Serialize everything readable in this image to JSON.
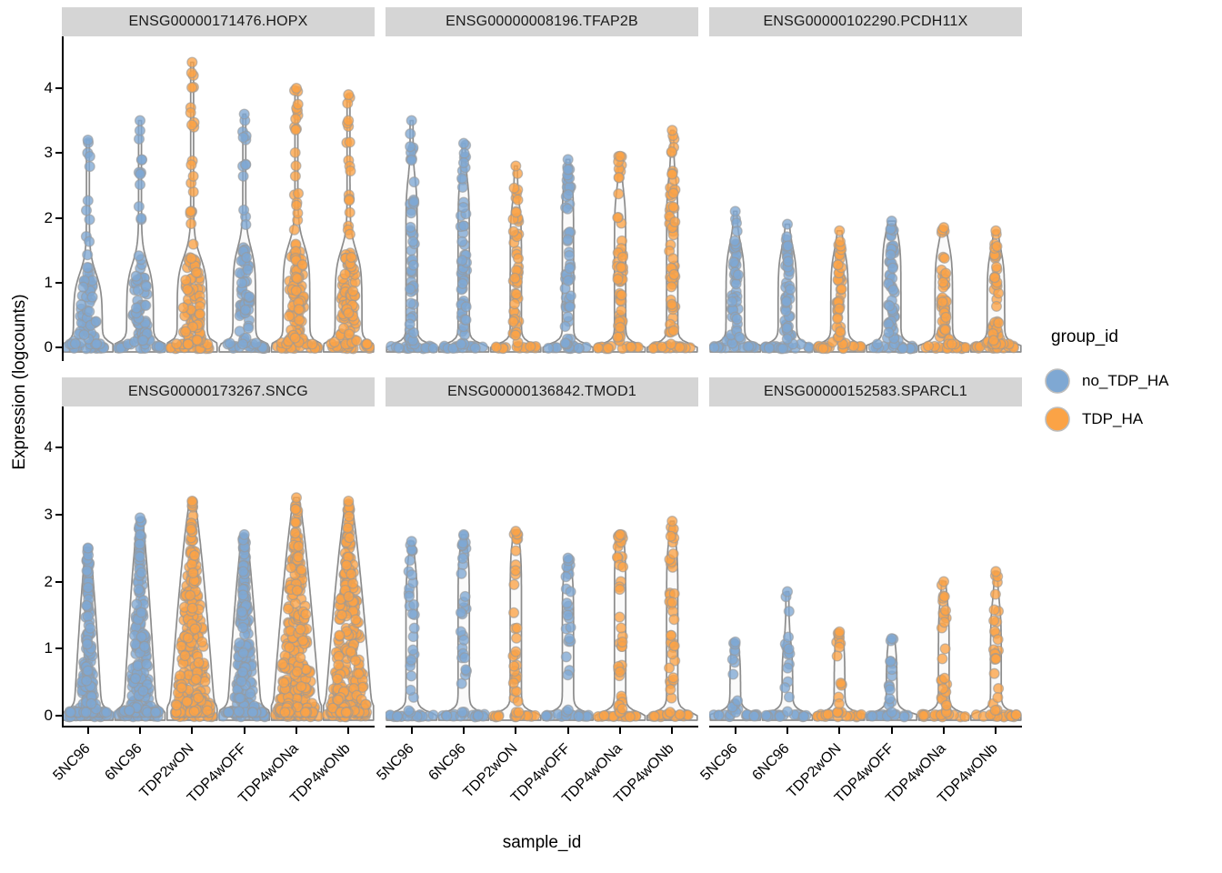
{
  "chart_data": {
    "type": "violin",
    "title": "",
    "xlabel": "sample_id",
    "ylabel": "Expression (logcounts)",
    "y_ticks": [
      0,
      1,
      2,
      3,
      4
    ],
    "ylim": [
      -0.2,
      4.8
    ],
    "grid": false,
    "facet_grid": {
      "rows": 2,
      "cols": 3
    },
    "samples": [
      "5NC96",
      "6NC96",
      "TDP2wON",
      "TDP4wOFF",
      "TDP4wONa",
      "TDP4wONb"
    ],
    "sample_groups": [
      "no_TDP_HA",
      "no_TDP_HA",
      "TDP_HA",
      "no_TDP_HA",
      "TDP_HA",
      "TDP_HA"
    ],
    "legend": {
      "title": "group_id",
      "position": "right",
      "entries": [
        {
          "label": "no_TDP_HA",
          "color": "#7FA8D3"
        },
        {
          "label": "TDP_HA",
          "color": "#FBA346"
        }
      ]
    },
    "style": {
      "strip_bg": "#D5D5D5",
      "violin_stroke": "#8C8C8C",
      "violin_fill": "#F7F7F7",
      "point_stroke": "#9A9A9A",
      "legend_ring": "#BDBDBD",
      "axis_color": "#000000"
    },
    "facets": [
      {
        "title": "ENSG00000171476.HOPX",
        "row": 0,
        "col": 0,
        "shape": "bulge",
        "violins": [
          {
            "sample": "5NC96",
            "group": "no_TDP_HA",
            "max": 3.2,
            "dense_to": 1.15,
            "width": 0.5,
            "n": 55,
            "ns": 12
          },
          {
            "sample": "6NC96",
            "group": "no_TDP_HA",
            "max": 3.5,
            "dense_to": 1.3,
            "width": 0.46,
            "n": 60,
            "ns": 13
          },
          {
            "sample": "TDP2wON",
            "group": "TDP_HA",
            "max": 4.4,
            "dense_to": 1.4,
            "width": 0.52,
            "n": 90,
            "ns": 20
          },
          {
            "sample": "TDP4wOFF",
            "group": "no_TDP_HA",
            "max": 3.6,
            "dense_to": 1.55,
            "width": 0.38,
            "n": 60,
            "ns": 12
          },
          {
            "sample": "TDP4wONa",
            "group": "TDP_HA",
            "max": 4.0,
            "dense_to": 1.6,
            "width": 0.46,
            "n": 80,
            "ns": 20
          },
          {
            "sample": "TDP4wONb",
            "group": "TDP_HA",
            "max": 3.9,
            "dense_to": 1.5,
            "width": 0.46,
            "n": 80,
            "ns": 18
          }
        ]
      },
      {
        "title": "ENSG00000008196.TFAP2B",
        "row": 0,
        "col": 1,
        "shape": "stem",
        "violins": [
          {
            "sample": "5NC96",
            "group": "no_TDP_HA",
            "max": 3.5,
            "dense_to": 2.6,
            "width": 0.16,
            "n": 46,
            "ns": 8
          },
          {
            "sample": "6NC96",
            "group": "no_TDP_HA",
            "max": 3.15,
            "dense_to": 2.6,
            "width": 0.16,
            "n": 44,
            "ns": 8
          },
          {
            "sample": "TDP2wON",
            "group": "TDP_HA",
            "max": 2.8,
            "dense_to": 2.2,
            "width": 0.16,
            "n": 40,
            "ns": 6
          },
          {
            "sample": "TDP4wOFF",
            "group": "no_TDP_HA",
            "max": 2.9,
            "dense_to": 2.6,
            "width": 0.16,
            "n": 46,
            "ns": 6
          },
          {
            "sample": "TDP4wONa",
            "group": "TDP_HA",
            "max": 2.95,
            "dense_to": 2.4,
            "width": 0.16,
            "n": 44,
            "ns": 8
          },
          {
            "sample": "TDP4wONb",
            "group": "TDP_HA",
            "max": 3.35,
            "dense_to": 2.6,
            "width": 0.16,
            "n": 46,
            "ns": 8
          }
        ]
      },
      {
        "title": "ENSG00000102290.PCDH11X",
        "row": 0,
        "col": 2,
        "shape": "column",
        "violins": [
          {
            "sample": "5NC96",
            "group": "no_TDP_HA",
            "max": 2.1,
            "dense_to": 1.6,
            "width": 0.3,
            "n": 45,
            "ns": 4
          },
          {
            "sample": "6NC96",
            "group": "no_TDP_HA",
            "max": 1.9,
            "dense_to": 1.55,
            "width": 0.3,
            "n": 45,
            "ns": 4
          },
          {
            "sample": "TDP2wON",
            "group": "TDP_HA",
            "max": 1.8,
            "dense_to": 1.5,
            "width": 0.28,
            "n": 40,
            "ns": 4
          },
          {
            "sample": "TDP4wOFF",
            "group": "no_TDP_HA",
            "max": 1.95,
            "dense_to": 1.8,
            "width": 0.3,
            "n": 50,
            "ns": 3
          },
          {
            "sample": "TDP4wONa",
            "group": "TDP_HA",
            "max": 1.85,
            "dense_to": 1.6,
            "width": 0.28,
            "n": 45,
            "ns": 4
          },
          {
            "sample": "TDP4wONb",
            "group": "TDP_HA",
            "max": 1.8,
            "dense_to": 1.5,
            "width": 0.28,
            "n": 42,
            "ns": 4
          }
        ]
      },
      {
        "title": "ENSG00000173267.SNCG",
        "row": 1,
        "col": 0,
        "shape": "cone",
        "violins": [
          {
            "sample": "5NC96",
            "group": "no_TDP_HA",
            "max": 2.5,
            "dense_to": 2.4,
            "width": 0.48,
            "n": 150,
            "ns": 0
          },
          {
            "sample": "6NC96",
            "group": "no_TDP_HA",
            "max": 2.95,
            "dense_to": 2.8,
            "width": 0.58,
            "n": 180,
            "ns": 0
          },
          {
            "sample": "TDP2wON",
            "group": "TDP_HA",
            "max": 3.2,
            "dense_to": 3.1,
            "width": 0.82,
            "n": 260,
            "ns": 0
          },
          {
            "sample": "TDP4wOFF",
            "group": "no_TDP_HA",
            "max": 2.7,
            "dense_to": 2.6,
            "width": 0.6,
            "n": 190,
            "ns": 0
          },
          {
            "sample": "TDP4wONa",
            "group": "TDP_HA",
            "max": 3.25,
            "dense_to": 3.1,
            "width": 0.86,
            "n": 270,
            "ns": 0
          },
          {
            "sample": "TDP4wONb",
            "group": "TDP_HA",
            "max": 3.2,
            "dense_to": 3.1,
            "width": 0.86,
            "n": 260,
            "ns": 0
          }
        ]
      },
      {
        "title": "ENSG00000136842.TMOD1",
        "row": 1,
        "col": 1,
        "shape": "stem",
        "violins": [
          {
            "sample": "5NC96",
            "group": "no_TDP_HA",
            "max": 2.6,
            "dense_to": 2.3,
            "width": 0.16,
            "n": 22,
            "ns": 5
          },
          {
            "sample": "6NC96",
            "group": "no_TDP_HA",
            "max": 2.7,
            "dense_to": 2.5,
            "width": 0.16,
            "n": 24,
            "ns": 5
          },
          {
            "sample": "TDP2wON",
            "group": "TDP_HA",
            "max": 2.75,
            "dense_to": 2.6,
            "width": 0.16,
            "n": 26,
            "ns": 5
          },
          {
            "sample": "TDP4wOFF",
            "group": "no_TDP_HA",
            "max": 2.35,
            "dense_to": 2.2,
            "width": 0.16,
            "n": 20,
            "ns": 4
          },
          {
            "sample": "TDP4wONa",
            "group": "TDP_HA",
            "max": 2.7,
            "dense_to": 2.65,
            "width": 0.16,
            "n": 34,
            "ns": 4
          },
          {
            "sample": "TDP4wONb",
            "group": "TDP_HA",
            "max": 2.9,
            "dense_to": 2.6,
            "width": 0.16,
            "n": 30,
            "ns": 5
          }
        ]
      },
      {
        "title": "ENSG00000152583.SPARCL1",
        "row": 1,
        "col": 2,
        "shape": "stem",
        "violins": [
          {
            "sample": "5NC96",
            "group": "no_TDP_HA",
            "max": 1.1,
            "dense_to": 1.05,
            "width": 0.15,
            "n": 12,
            "ns": 2
          },
          {
            "sample": "6NC96",
            "group": "no_TDP_HA",
            "max": 1.85,
            "dense_to": 1.1,
            "width": 0.15,
            "n": 12,
            "ns": 3
          },
          {
            "sample": "TDP2wON",
            "group": "TDP_HA",
            "max": 1.25,
            "dense_to": 1.2,
            "width": 0.15,
            "n": 16,
            "ns": 2
          },
          {
            "sample": "TDP4wOFF",
            "group": "no_TDP_HA",
            "max": 1.15,
            "dense_to": 1.1,
            "width": 0.15,
            "n": 12,
            "ns": 2
          },
          {
            "sample": "TDP4wONa",
            "group": "TDP_HA",
            "max": 2.0,
            "dense_to": 1.75,
            "width": 0.15,
            "n": 22,
            "ns": 4
          },
          {
            "sample": "TDP4wONb",
            "group": "TDP_HA",
            "max": 2.15,
            "dense_to": 1.7,
            "width": 0.15,
            "n": 20,
            "ns": 4
          }
        ]
      }
    ]
  }
}
